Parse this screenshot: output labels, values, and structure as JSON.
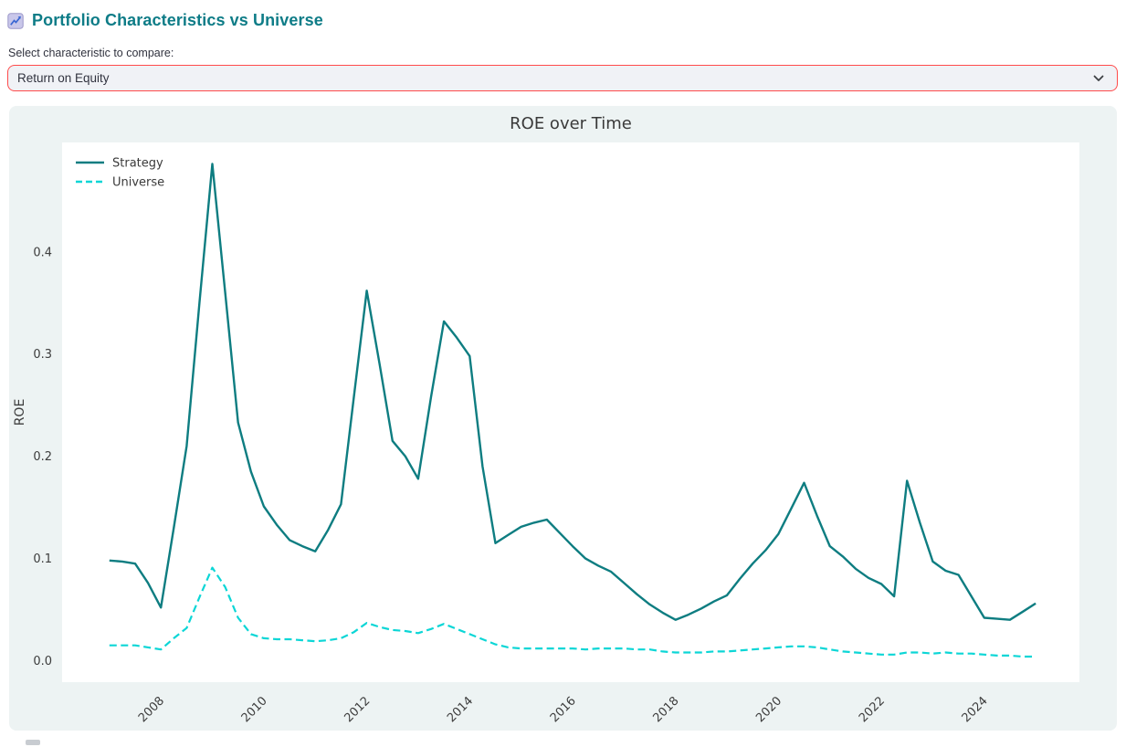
{
  "header": {
    "icon": "chart-increasing-icon",
    "title": "Portfolio Characteristics vs Universe"
  },
  "selectbox": {
    "label": "Select characteristic to compare:",
    "value": "Return on Equity"
  },
  "colors": {
    "accent_red": "#ff4b4b",
    "heading_teal": "#0e7c87",
    "strategy_teal": "#0e7d81",
    "universe_cyan": "#0cd6d6",
    "panel_bg": "#edf3f3",
    "select_bg": "#f0f2f6",
    "plot_bg": "#ffffff"
  },
  "chart_data": {
    "type": "line",
    "title": "ROE over Time",
    "xlabel": "",
    "ylabel": "ROE",
    "plot_bg": "#ffffff",
    "grid": false,
    "legend_position": "upper-left",
    "frequency": "quarterly",
    "x_start_year": 2007.0,
    "x_step_years": 0.25,
    "x_start_period": "2007Q1",
    "x_end_period": "2025Q1",
    "xlim": [
      2006.08,
      2025.85
    ],
    "ylim": [
      -0.021,
      0.507
    ],
    "x_ticks": [
      2008,
      2010,
      2012,
      2014,
      2016,
      2018,
      2020,
      2022,
      2024
    ],
    "x_tick_labels": [
      "2008",
      "2010",
      "2012",
      "2014",
      "2016",
      "2018",
      "2020",
      "2022",
      "2024"
    ],
    "y_ticks": [
      0.0,
      0.1,
      0.2,
      0.3,
      0.4
    ],
    "y_tick_labels": [
      "0.0",
      "0.1",
      "0.2",
      "0.3",
      "0.4"
    ],
    "series": [
      {
        "name": "Strategy",
        "style": "solid",
        "color": "#0e7d81",
        "width": 2.4,
        "values": [
          0.098,
          0.097,
          0.095,
          0.076,
          0.052,
          0.13,
          0.21,
          0.35,
          0.486,
          0.36,
          0.233,
          0.185,
          0.151,
          0.133,
          0.118,
          0.112,
          0.107,
          0.128,
          0.153,
          0.258,
          0.362,
          0.29,
          0.215,
          0.2,
          0.178,
          0.258,
          0.332,
          0.316,
          0.298,
          0.19,
          0.115,
          0.123,
          0.131,
          0.135,
          0.138,
          0.125,
          0.112,
          0.1,
          0.093,
          0.087,
          0.076,
          0.065,
          0.055,
          0.047,
          0.04,
          0.045,
          0.051,
          0.058,
          0.064,
          0.08,
          0.095,
          0.108,
          0.124,
          0.149,
          0.174,
          0.142,
          0.112,
          0.102,
          0.09,
          0.081,
          0.075,
          0.063,
          0.176,
          0.135,
          0.097,
          0.088,
          0.084,
          0.063,
          0.042,
          0.041,
          0.04,
          0.048,
          0.056
        ]
      },
      {
        "name": "Universe",
        "style": "dashed",
        "color": "#0cd6d6",
        "width": 2.2,
        "values": [
          0.015,
          0.015,
          0.015,
          0.013,
          0.011,
          0.022,
          0.032,
          0.062,
          0.091,
          0.072,
          0.042,
          0.026,
          0.022,
          0.021,
          0.021,
          0.02,
          0.019,
          0.02,
          0.022,
          0.028,
          0.037,
          0.033,
          0.03,
          0.029,
          0.027,
          0.031,
          0.036,
          0.031,
          0.026,
          0.021,
          0.016,
          0.013,
          0.012,
          0.012,
          0.012,
          0.012,
          0.012,
          0.011,
          0.012,
          0.012,
          0.012,
          0.011,
          0.011,
          0.009,
          0.008,
          0.008,
          0.008,
          0.009,
          0.009,
          0.01,
          0.011,
          0.012,
          0.013,
          0.014,
          0.014,
          0.013,
          0.011,
          0.009,
          0.008,
          0.007,
          0.006,
          0.006,
          0.008,
          0.008,
          0.007,
          0.008,
          0.007,
          0.007,
          0.006,
          0.005,
          0.005,
          0.004,
          0.004
        ]
      }
    ]
  }
}
